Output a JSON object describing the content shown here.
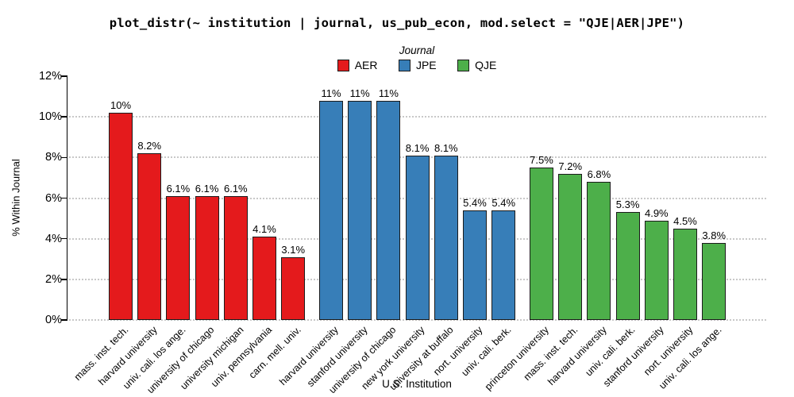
{
  "title": "plot_distr(~ institution | journal, us_pub_econ, mod.select = \"QJE|AER|JPE\")",
  "legend": {
    "title": "Journal"
  },
  "axes": {
    "x_label": "U.S. Institution",
    "y_label": "% Within Journal",
    "y_ticks": [
      "12%",
      "10%",
      "8%",
      "6%",
      "4%",
      "2%",
      "0%"
    ]
  },
  "chart_data": {
    "type": "bar",
    "title": "plot_distr(~ institution | journal, us_pub_econ, mod.select = \"QJE|AER|JPE\")",
    "xlabel": "U.S. Institution",
    "ylabel": "% Within Journal",
    "ylim": [
      0,
      12
    ],
    "y_tick_step": 2,
    "y_unit": "percent",
    "grid": "horizontal dotted at 0,2,4,6,8,10",
    "legend_title": "Journal",
    "legend_position": "top-center",
    "series": [
      {
        "name": "AER",
        "color": "#E41A1C",
        "categories": [
          "mass. inst. tech.",
          "harvard university",
          "univ. cali. los ange.",
          "university of chicago",
          "university michigan",
          "univ. pennsylvania",
          "carn. mell. univ."
        ],
        "values": [
          10.2,
          8.2,
          6.1,
          6.1,
          6.1,
          4.1,
          3.1
        ],
        "value_labels": [
          "10%",
          "8.2%",
          "6.1%",
          "6.1%",
          "6.1%",
          "4.1%",
          "3.1%"
        ]
      },
      {
        "name": "JPE",
        "color": "#377EB8",
        "categories": [
          "harvard university",
          "stanford university",
          "university of chicago",
          "new york university",
          "university at buffalo",
          "nort. university",
          "univ. cali. berk."
        ],
        "values": [
          10.8,
          10.8,
          10.8,
          8.1,
          8.1,
          5.4,
          5.4
        ],
        "value_labels": [
          "11%",
          "11%",
          "11%",
          "8.1%",
          "8.1%",
          "5.4%",
          "5.4%"
        ]
      },
      {
        "name": "QJE",
        "color": "#4DAF4A",
        "categories": [
          "princeton university",
          "mass. inst. tech.",
          "harvard university",
          "univ. cali. berk.",
          "stanford university",
          "nort. university",
          "univ. cali. los ange."
        ],
        "values": [
          7.5,
          7.2,
          6.8,
          5.3,
          4.9,
          4.5,
          3.8
        ],
        "value_labels": [
          "7.5%",
          "7.2%",
          "6.8%",
          "5.3%",
          "4.9%",
          "4.5%",
          "3.8%"
        ]
      }
    ]
  }
}
